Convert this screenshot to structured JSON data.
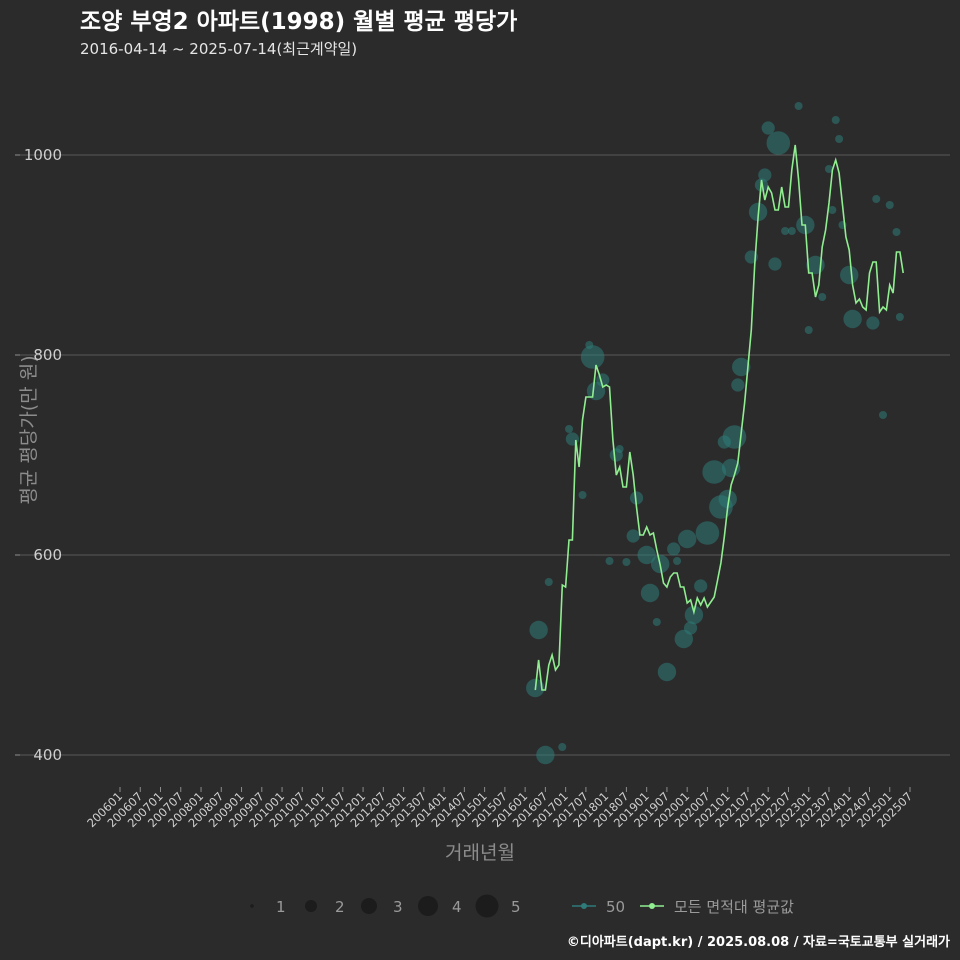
{
  "title": "조양 부영2 아파트(1998) 월별 평균 평당가",
  "subtitle": "2016-04-14 ~ 2025-07-14(최근계약일)",
  "caption": "©디아파트(dapt.kr) / 2025.08.08 / 자료=국토교통부 실거래가",
  "colors": {
    "background": "#2b2b2c",
    "grid": "#5a5a5a",
    "line": "#90ee90",
    "bubble": "#2e7b79"
  },
  "chart_data": {
    "type": "line",
    "xlabel": "거래년월",
    "ylabel": "평균 평당가(만 원)",
    "ylim": [
      370,
      1070
    ],
    "yticks": [
      400,
      600,
      800,
      1000
    ],
    "x_start": "2006-01",
    "x_end": "2025-07",
    "xtick_labels": [
      "200601",
      "200607",
      "200701",
      "200707",
      "200801",
      "200807",
      "200901",
      "200907",
      "201001",
      "201007",
      "201101",
      "201107",
      "201201",
      "201207",
      "201301",
      "201307",
      "201401",
      "201407",
      "201501",
      "201507",
      "201601",
      "201607",
      "201701",
      "201707",
      "201801",
      "201807",
      "201901",
      "201907",
      "202001",
      "202007",
      "202101",
      "202107",
      "202201",
      "202207",
      "202301",
      "202307",
      "202401",
      "202407",
      "202501",
      "202507"
    ],
    "size_legend": {
      "values": [
        "1",
        "2",
        "3",
        "4",
        "5"
      ]
    },
    "color_legend": [
      {
        "label": "50"
      },
      {
        "label": "모든 면적대 평균값"
      }
    ],
    "line_series": {
      "name": "모든 면적대 평균값",
      "points": [
        [
          "2016-04",
          465
        ],
        [
          "2016-05",
          495
        ],
        [
          "2016-06",
          465
        ],
        [
          "2016-07",
          465
        ],
        [
          "2016-08",
          490
        ],
        [
          "2016-09",
          500
        ],
        [
          "2016-10",
          485
        ],
        [
          "2016-11",
          490
        ],
        [
          "2016-12",
          570
        ],
        [
          "2017-01",
          568
        ],
        [
          "2017-02",
          615
        ],
        [
          "2017-03",
          615
        ],
        [
          "2017-04",
          715
        ],
        [
          "2017-05",
          688
        ],
        [
          "2017-06",
          735
        ],
        [
          "2017-07",
          758
        ],
        [
          "2017-08",
          758
        ],
        [
          "2017-09",
          758
        ],
        [
          "2017-10",
          790
        ],
        [
          "2017-11",
          780
        ],
        [
          "2017-12",
          768
        ],
        [
          "2018-01",
          770
        ],
        [
          "2018-02",
          768
        ],
        [
          "2018-03",
          715
        ],
        [
          "2018-04",
          680
        ],
        [
          "2018-05",
          688
        ],
        [
          "2018-06",
          668
        ],
        [
          "2018-07",
          668
        ],
        [
          "2018-08",
          703
        ],
        [
          "2018-09",
          680
        ],
        [
          "2018-10",
          648
        ],
        [
          "2018-11",
          620
        ],
        [
          "2018-12",
          620
        ],
        [
          "2019-01",
          628
        ],
        [
          "2019-02",
          620
        ],
        [
          "2019-03",
          622
        ],
        [
          "2019-04",
          605
        ],
        [
          "2019-05",
          590
        ],
        [
          "2019-06",
          572
        ],
        [
          "2019-07",
          568
        ],
        [
          "2019-08",
          578
        ],
        [
          "2019-09",
          582
        ],
        [
          "2019-10",
          582
        ],
        [
          "2019-11",
          568
        ],
        [
          "2019-12",
          568
        ],
        [
          "2020-01",
          552
        ],
        [
          "2020-02",
          555
        ],
        [
          "2020-03",
          543
        ],
        [
          "2020-04",
          557
        ],
        [
          "2020-05",
          550
        ],
        [
          "2020-06",
          557
        ],
        [
          "2020-07",
          548
        ],
        [
          "2020-08",
          553
        ],
        [
          "2020-09",
          558
        ],
        [
          "2020-10",
          575
        ],
        [
          "2020-11",
          592
        ],
        [
          "2020-12",
          618
        ],
        [
          "2021-01",
          648
        ],
        [
          "2021-02",
          670
        ],
        [
          "2021-03",
          680
        ],
        [
          "2021-04",
          692
        ],
        [
          "2021-05",
          722
        ],
        [
          "2021-06",
          752
        ],
        [
          "2021-07",
          788
        ],
        [
          "2021-08",
          825
        ],
        [
          "2021-09",
          890
        ],
        [
          "2021-10",
          938
        ],
        [
          "2021-11",
          975
        ],
        [
          "2021-12",
          955
        ],
        [
          "2022-01",
          968
        ],
        [
          "2022-02",
          962
        ],
        [
          "2022-03",
          945
        ],
        [
          "2022-04",
          945
        ],
        [
          "2022-05",
          968
        ],
        [
          "2022-06",
          948
        ],
        [
          "2022-07",
          948
        ],
        [
          "2022-08",
          985
        ],
        [
          "2022-09",
          1010
        ],
        [
          "2022-10",
          975
        ],
        [
          "2022-11",
          930
        ],
        [
          "2022-12",
          930
        ],
        [
          "2023-01",
          882
        ],
        [
          "2023-02",
          882
        ],
        [
          "2023-03",
          858
        ],
        [
          "2023-04",
          870
        ],
        [
          "2023-05",
          908
        ],
        [
          "2023-06",
          925
        ],
        [
          "2023-07",
          952
        ],
        [
          "2023-08",
          985
        ],
        [
          "2023-09",
          995
        ],
        [
          "2023-10",
          982
        ],
        [
          "2023-11",
          950
        ],
        [
          "2023-12",
          918
        ],
        [
          "2024-01",
          905
        ],
        [
          "2024-02",
          870
        ],
        [
          "2024-03",
          852
        ],
        [
          "2024-04",
          856
        ],
        [
          "2024-05",
          848
        ],
        [
          "2024-06",
          845
        ],
        [
          "2024-07",
          882
        ],
        [
          "2024-08",
          893
        ],
        [
          "2024-09",
          893
        ],
        [
          "2024-10",
          843
        ],
        [
          "2024-11",
          848
        ],
        [
          "2024-12",
          845
        ],
        [
          "2025-01",
          870
        ],
        [
          "2025-02",
          862
        ],
        [
          "2025-03",
          903
        ],
        [
          "2025-04",
          903
        ],
        [
          "2025-05",
          882
        ]
      ]
    },
    "bubble_series": {
      "name": "50",
      "points": [
        [
          "2016-04",
          467,
          3
        ],
        [
          "2016-05",
          525,
          3
        ],
        [
          "2016-07",
          400,
          3
        ],
        [
          "2016-08",
          573,
          1
        ],
        [
          "2016-12",
          408,
          1
        ],
        [
          "2017-02",
          726,
          1
        ],
        [
          "2017-03",
          716,
          2
        ],
        [
          "2017-06",
          660,
          1
        ],
        [
          "2017-08",
          810,
          1
        ],
        [
          "2017-09",
          798,
          4
        ],
        [
          "2017-10",
          764,
          3
        ],
        [
          "2017-12",
          775,
          2
        ],
        [
          "2018-02",
          594,
          1
        ],
        [
          "2018-04",
          700,
          2
        ],
        [
          "2018-05",
          706,
          1
        ],
        [
          "2018-07",
          593,
          1
        ],
        [
          "2018-09",
          619,
          2
        ],
        [
          "2018-10",
          657,
          2
        ],
        [
          "2019-01",
          600,
          3
        ],
        [
          "2019-02",
          562,
          3
        ],
        [
          "2019-04",
          533,
          1
        ],
        [
          "2019-05",
          591,
          3
        ],
        [
          "2019-07",
          483,
          3
        ],
        [
          "2019-09",
          606,
          2
        ],
        [
          "2019-10",
          594,
          1
        ],
        [
          "2019-12",
          516,
          3
        ],
        [
          "2020-01",
          616,
          3
        ],
        [
          "2020-02",
          527,
          2
        ],
        [
          "2020-03",
          540,
          3
        ],
        [
          "2020-05",
          569,
          2
        ],
        [
          "2020-07",
          622,
          4
        ],
        [
          "2020-09",
          683,
          4
        ],
        [
          "2020-11",
          648,
          4
        ],
        [
          "2020-12",
          713,
          2
        ],
        [
          "2021-01",
          656,
          3
        ],
        [
          "2021-02",
          687,
          3
        ],
        [
          "2021-03",
          718,
          4
        ],
        [
          "2021-04",
          770,
          2
        ],
        [
          "2021-05",
          788,
          3
        ],
        [
          "2021-08",
          898,
          2
        ],
        [
          "2021-10",
          943,
          3
        ],
        [
          "2021-11",
          970,
          2
        ],
        [
          "2021-12",
          980,
          2
        ],
        [
          "2022-01",
          1027,
          2
        ],
        [
          "2022-03",
          891,
          2
        ],
        [
          "2022-04",
          1012,
          4
        ],
        [
          "2022-06",
          924,
          1
        ],
        [
          "2022-08",
          924,
          1
        ],
        [
          "2022-10",
          1049,
          1
        ],
        [
          "2022-12",
          930,
          3
        ],
        [
          "2023-01",
          825,
          1
        ],
        [
          "2023-03",
          890,
          3
        ],
        [
          "2023-05",
          858,
          1
        ],
        [
          "2023-07",
          986,
          1
        ],
        [
          "2023-08",
          945,
          1
        ],
        [
          "2023-09",
          1035,
          1
        ],
        [
          "2023-10",
          1016,
          1
        ],
        [
          "2023-11",
          930,
          1
        ],
        [
          "2024-01",
          880,
          3
        ],
        [
          "2024-02",
          836,
          3
        ],
        [
          "2024-08",
          832,
          2
        ],
        [
          "2024-09",
          956,
          1
        ],
        [
          "2024-11",
          740,
          1
        ],
        [
          "2025-01",
          950,
          1
        ],
        [
          "2025-03",
          923,
          1
        ],
        [
          "2025-04",
          838,
          1
        ]
      ]
    }
  }
}
